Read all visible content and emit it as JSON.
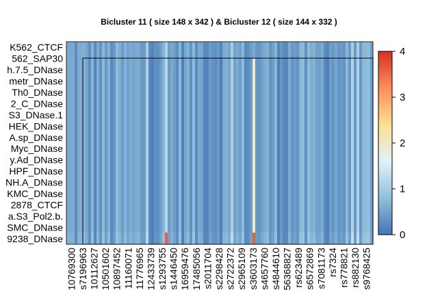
{
  "chart_data": {
    "type": "heatmap",
    "title": "Bicluster  11 ( size  148 x 342 ) & Bicluster  12 ( size  144 x 332 )",
    "row_labels": [
      "K562_CTCF",
      "562_SAP30",
      "h.7.5_DNase",
      "metr_DNase",
      "Th0_DNase",
      "2_C_DNase",
      "S3_DNase.1",
      "HEK_DNase",
      "A.sp_DNase",
      "Myc_DNase",
      "y.Ad_DNase",
      "HPF_DNase",
      "NH.A_DNase",
      "KMC_DNase",
      "2878_CTCF",
      "a.S3_Pol2.b.",
      "SMC_DNase",
      "9238_DNase"
    ],
    "col_labels": [
      "10769300",
      "s7196963",
      "10112627",
      "10501602",
      "10897452",
      "11160071",
      "11776965",
      "12433739",
      "s1293755",
      "s1446450",
      "16959476",
      "17485056",
      "s2011704",
      "s2298428",
      "s2722372",
      "s2965109",
      "s3603173",
      "s4657760",
      "s4844610",
      "56368827",
      "rs623489",
      "s6572869",
      "s7081173",
      "rs7324",
      "rs778821",
      "rs882130",
      "s9768425"
    ],
    "color_scale": {
      "min": 0,
      "max": 4,
      "ticks": [
        0,
        1,
        2,
        3,
        4
      ],
      "stops": [
        "#4575b4",
        "#91bfdb",
        "#e0f3f8",
        "#fee090",
        "#fc8d59",
        "#d73027"
      ]
    },
    "typical_value_range": [
      0.1,
      0.8
    ],
    "bicluster_box": {
      "label": "Bicluster 12",
      "rows": 144,
      "cols": 332
    },
    "grid": false,
    "legend_position": "right"
  }
}
